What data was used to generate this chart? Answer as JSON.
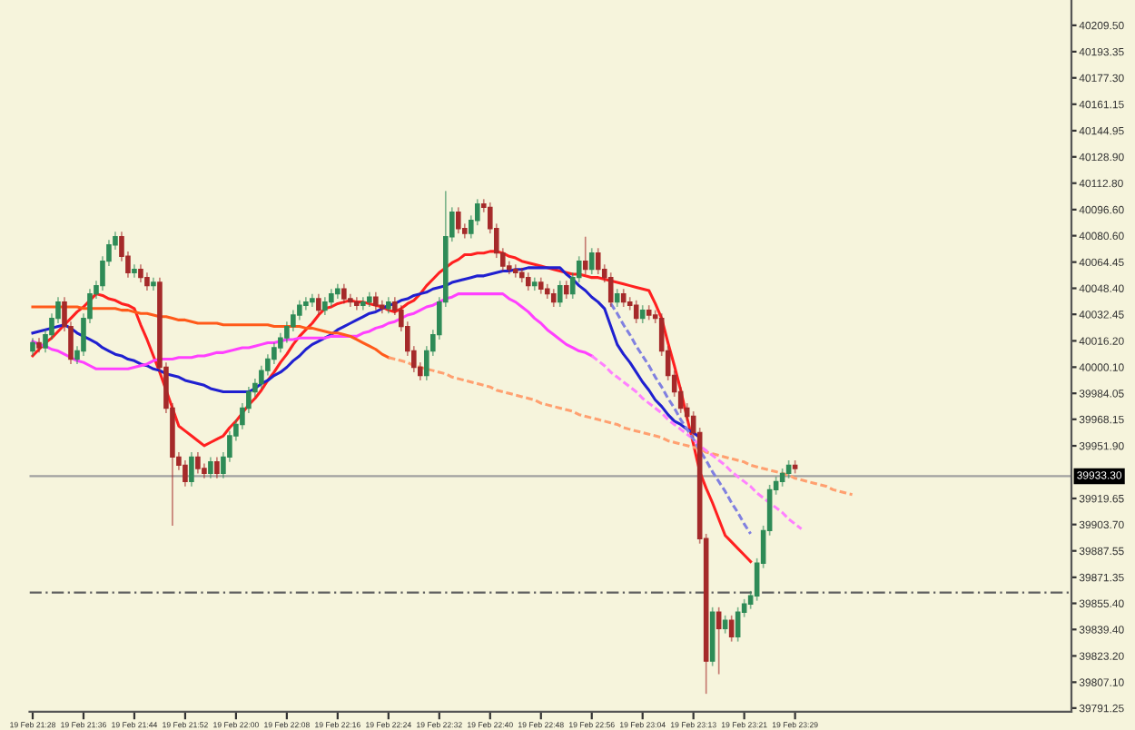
{
  "chart_data": {
    "type": "candlestick",
    "categories": [
      "19 Feb 21:28",
      null,
      null,
      null,
      null,
      null,
      null,
      null,
      "19 Feb 21:36",
      null,
      null,
      null,
      null,
      null,
      null,
      null,
      "19 Feb 21:44",
      null,
      null,
      null,
      null,
      null,
      null,
      null,
      "19 Feb 21:52",
      null,
      null,
      null,
      null,
      null,
      null,
      null,
      "19 Feb 22:00",
      null,
      null,
      null,
      null,
      null,
      null,
      null,
      "19 Feb 22:08",
      null,
      null,
      null,
      null,
      null,
      null,
      null,
      "19 Feb 22:16",
      null,
      null,
      null,
      null,
      null,
      null,
      null,
      "19 Feb 22:24",
      null,
      null,
      null,
      null,
      null,
      null,
      null,
      "19 Feb 22:32",
      null,
      null,
      null,
      null,
      null,
      null,
      null,
      "19 Feb 22:40",
      null,
      null,
      null,
      null,
      null,
      null,
      null,
      "19 Feb 22:48",
      null,
      null,
      null,
      null,
      null,
      null,
      null,
      "19 Feb 22:56",
      null,
      null,
      null,
      null,
      null,
      null,
      null,
      "19 Feb 23:04",
      null,
      null,
      null,
      null,
      null,
      null,
      null,
      "19 Feb 23:13",
      null,
      null,
      null,
      null,
      null,
      null,
      null,
      "19 Feb 23:21",
      null,
      null,
      null,
      null,
      null,
      null,
      null,
      "19 Feb 23:29",
      null,
      null,
      null,
      null,
      null,
      null,
      null,
      null,
      null,
      null,
      null,
      null,
      null,
      null,
      null,
      null,
      null,
      null,
      null,
      null,
      null,
      null,
      null,
      null,
      null,
      null,
      null,
      null,
      null,
      null,
      null,
      null,
      null,
      null,
      null,
      null,
      null,
      null,
      null,
      null,
      null,
      null,
      null
    ],
    "ohlc": [
      [
        40010,
        40018,
        40007,
        40015
      ],
      [
        40015,
        40018,
        40009,
        40012
      ],
      [
        40012,
        40023,
        40009,
        40020
      ],
      [
        40020,
        40033,
        40017,
        40030
      ],
      [
        40030,
        40043,
        40027,
        40040
      ],
      [
        40040,
        40043,
        40022,
        40025
      ],
      [
        40025,
        40028,
        40002,
        40005
      ],
      [
        40005,
        40013,
        40002,
        40010
      ],
      [
        40010,
        40033,
        40007,
        40030
      ],
      [
        40030,
        40048,
        40027,
        40045
      ],
      [
        40045,
        40053,
        40042,
        40050
      ],
      [
        40050,
        40068,
        40047,
        40065
      ],
      [
        40065,
        40078,
        40062,
        40075
      ],
      [
        40075,
        40083,
        40072,
        40080
      ],
      [
        40080,
        40083,
        40065,
        40068
      ],
      [
        40068,
        40071,
        40055,
        40058
      ],
      [
        40058,
        40063,
        40055,
        40060
      ],
      [
        40060,
        40063,
        40052,
        40055
      ],
      [
        40055,
        40058,
        40047,
        40050
      ],
      [
        40050,
        40055,
        40047,
        40052
      ],
      [
        40052,
        40055,
        39997,
        40000
      ],
      [
        40000,
        40003,
        39972,
        39975
      ],
      [
        39975,
        39978,
        39903,
        39945
      ],
      [
        39945,
        39948,
        39937,
        39940
      ],
      [
        39940,
        39943,
        39927,
        39930
      ],
      [
        39930,
        39948,
        39927,
        39945
      ],
      [
        39945,
        39948,
        39935,
        39938
      ],
      [
        39938,
        39941,
        39932,
        39935
      ],
      [
        39935,
        39945,
        39932,
        39942
      ],
      [
        39942,
        39945,
        39932,
        39935
      ],
      [
        39935,
        39948,
        39932,
        39945
      ],
      [
        39945,
        39961,
        39942,
        39958
      ],
      [
        39958,
        39968,
        39955,
        39965
      ],
      [
        39965,
        39978,
        39962,
        39975
      ],
      [
        39975,
        39988,
        39972,
        39985
      ],
      [
        39985,
        39993,
        39982,
        39990
      ],
      [
        39990,
        40001,
        39987,
        39998
      ],
      [
        39998,
        40008,
        39995,
        40005
      ],
      [
        40005,
        40015,
        40002,
        40012
      ],
      [
        40012,
        40021,
        40009,
        40018
      ],
      [
        40018,
        40028,
        40015,
        40025
      ],
      [
        40025,
        40035,
        40022,
        40032
      ],
      [
        40032,
        40041,
        40029,
        40038
      ],
      [
        40038,
        40043,
        40035,
        40040
      ],
      [
        40040,
        40045,
        40037,
        40042
      ],
      [
        40042,
        40045,
        40032,
        40035
      ],
      [
        40035,
        40043,
        40032,
        40040
      ],
      [
        40040,
        40048,
        40037,
        40045
      ],
      [
        40045,
        40051,
        40042,
        40048
      ],
      [
        40048,
        40051,
        40039,
        40042
      ],
      [
        40042,
        40045,
        40037,
        40040
      ],
      [
        40040,
        40043,
        40035,
        40038
      ],
      [
        40038,
        40043,
        40035,
        40040
      ],
      [
        40040,
        40046,
        40037,
        40043
      ],
      [
        40043,
        40046,
        40035,
        40038
      ],
      [
        40038,
        40041,
        40033,
        40036
      ],
      [
        40036,
        40043,
        40033,
        40040
      ],
      [
        40040,
        40043,
        40032,
        40035
      ],
      [
        40035,
        40038,
        40022,
        40025
      ],
      [
        40025,
        40028,
        40007,
        40010
      ],
      [
        40010,
        40013,
        39997,
        40000
      ],
      [
        40000,
        40003,
        39992,
        39995
      ],
      [
        39995,
        40013,
        39992,
        40010
      ],
      [
        40010,
        40023,
        40007,
        40020
      ],
      [
        40020,
        40043,
        40017,
        40040
      ],
      [
        40040,
        40108,
        40037,
        40080
      ],
      [
        40080,
        40098,
        40077,
        40095
      ],
      [
        40095,
        40098,
        40082,
        40085
      ],
      [
        40085,
        40088,
        40079,
        40082
      ],
      [
        40082,
        40093,
        40079,
        40090
      ],
      [
        40090,
        40103,
        40087,
        40100
      ],
      [
        40100,
        40103,
        40095,
        40098
      ],
      [
        40098,
        40101,
        40082,
        40085
      ],
      [
        40085,
        40088,
        40067,
        40070
      ],
      [
        40070,
        40073,
        40059,
        40062
      ],
      [
        40062,
        40065,
        40057,
        40060
      ],
      [
        40060,
        40063,
        40055,
        40058
      ],
      [
        40058,
        40061,
        40052,
        40055
      ],
      [
        40055,
        40058,
        40047,
        40050
      ],
      [
        40050,
        40055,
        40047,
        40052
      ],
      [
        40052,
        40055,
        40045,
        40048
      ],
      [
        40048,
        40051,
        40042,
        40045
      ],
      [
        40045,
        40048,
        40037,
        40040
      ],
      [
        40040,
        40053,
        40037,
        40050
      ],
      [
        40050,
        40053,
        40042,
        40045
      ],
      [
        40045,
        40058,
        40042,
        40055
      ],
      [
        40055,
        40068,
        40052,
        40065
      ],
      [
        40065,
        40080,
        40057,
        40060
      ],
      [
        40060,
        40073,
        40057,
        40070
      ],
      [
        40070,
        40073,
        40057,
        40060
      ],
      [
        40060,
        40063,
        40052,
        40055
      ],
      [
        40055,
        40058,
        40037,
        40040
      ],
      [
        40040,
        40048,
        40037,
        40045
      ],
      [
        40045,
        40048,
        40037,
        40040
      ],
      [
        40040,
        40043,
        40035,
        40038
      ],
      [
        40038,
        40041,
        40027,
        40030
      ],
      [
        40030,
        40038,
        40027,
        40035
      ],
      [
        40035,
        40038,
        40029,
        40032
      ],
      [
        40032,
        40035,
        40027,
        40030
      ],
      [
        40030,
        40033,
        40007,
        40010
      ],
      [
        40010,
        40013,
        39992,
        39995
      ],
      [
        39995,
        39998,
        39982,
        39985
      ],
      [
        39985,
        39988,
        39972,
        39975
      ],
      [
        39975,
        39978,
        39967,
        39970
      ],
      [
        39970,
        39973,
        39957,
        39960
      ],
      [
        39960,
        39963,
        39892,
        39895
      ],
      [
        39895,
        39898,
        39800,
        39820
      ],
      [
        39820,
        39853,
        39817,
        39850
      ],
      [
        39850,
        39853,
        39812,
        39840
      ],
      [
        39840,
        39848,
        39837,
        39845
      ],
      [
        39845,
        39848,
        39832,
        39835
      ],
      [
        39835,
        39853,
        39832,
        39850
      ],
      [
        39850,
        39858,
        39847,
        39855
      ],
      [
        39855,
        39863,
        39852,
        39860
      ],
      [
        39860,
        39883,
        39857,
        39880
      ],
      [
        39880,
        39903,
        39877,
        39900
      ],
      [
        39900,
        39928,
        39897,
        39925
      ],
      [
        39925,
        39933,
        39922,
        39930
      ],
      [
        39930,
        39938,
        39927,
        39935
      ],
      [
        39935,
        39943,
        39932,
        39940
      ],
      [
        39940,
        39943,
        39935,
        39938
      ],
      null,
      null,
      null,
      null,
      null,
      null,
      null,
      null,
      null,
      null,
      null,
      null,
      null,
      null,
      null,
      null,
      null,
      null,
      null,
      null,
      null,
      null,
      null,
      null,
      null,
      null,
      null,
      null,
      null,
      null,
      null,
      null,
      null,
      null,
      null,
      null,
      null,
      null,
      null,
      null,
      null,
      null,
      null
    ],
    "series": [
      {
        "type": "line",
        "color": "#ff2020",
        "line_style": "solid",
        "values": [
          40007,
          40011,
          40015,
          40018,
          40022,
          40026,
          40030,
          40034,
          40037,
          40041,
          40045,
          40044,
          40042,
          40041,
          40039,
          40038,
          40036,
          40026,
          40017,
          40007,
          39997,
          39986,
          39975,
          39964,
          39961,
          39958,
          39955,
          39952,
          39954,
          39956,
          39958,
          39963,
          39967,
          39972,
          39977,
          39981,
          39986,
          39992,
          39997,
          40003,
          40008,
          40014,
          40019,
          40023,
          40027,
          40032,
          40036,
          40037,
          40039,
          40040,
          40041,
          40040,
          40040,
          40039,
          40038,
          40037,
          40035,
          40034,
          40036,
          40039,
          40041,
          40045,
          40050,
          40054,
          40058,
          40061,
          40064,
          40066,
          40069,
          40069,
          40070,
          40070,
          40071,
          40071,
          40070,
          40068,
          40067,
          40065,
          40064,
          40063,
          40062,
          40061,
          40060,
          40059,
          40058,
          40057,
          40057,
          40056,
          40055,
          40055,
          40054,
          40053,
          40052,
          40051,
          40050,
          40049,
          40048,
          40047,
          40039,
          40030,
          40015,
          40001,
          39986,
          39969,
          39953,
          39936,
          39926,
          39917,
          39907,
          39897,
          39893,
          39889,
          39885,
          39881,
          null,
          null,
          null,
          null,
          null,
          null,
          null,
          null,
          null,
          null,
          null,
          null,
          null,
          null,
          null,
          null,
          null,
          null,
          null,
          null,
          null,
          null,
          null,
          null,
          null,
          null,
          null,
          null,
          null,
          null,
          null,
          null,
          null,
          null,
          null,
          null,
          null,
          null,
          null,
          null,
          null,
          null,
          null,
          null,
          null,
          null,
          null,
          null,
          null,
          null
        ]
      },
      {
        "type": "line",
        "color": "#2020d0",
        "line_style": "solid",
        "values": [
          40021,
          40022,
          40023,
          40024,
          40025,
          40026,
          40024,
          40021,
          40019,
          40017,
          40015,
          40012,
          40010,
          40008,
          40007,
          40005,
          40004,
          40002,
          40001,
          39999,
          39998,
          39996,
          39995,
          39994,
          39992,
          39991,
          39990,
          39989,
          39987,
          39986,
          39985,
          39985,
          39985,
          39985,
          39985,
          39987,
          39990,
          39992,
          39995,
          39997,
          40000,
          40004,
          40007,
          40011,
          40014,
          40016,
          40018,
          40020,
          40023,
          40025,
          40027,
          40029,
          40031,
          40033,
          40034,
          40036,
          40038,
          40039,
          40041,
          40042,
          40044,
          40045,
          40046,
          40048,
          40049,
          40050,
          40052,
          40053,
          40054,
          40055,
          40056,
          40056,
          40057,
          40058,
          40059,
          40059,
          40060,
          40060,
          40061,
          40061,
          40061,
          40061,
          40061,
          40061,
          40057,
          40054,
          40050,
          40047,
          40043,
          40040,
          40036,
          40025,
          40014,
          40008,
          40003,
          39997,
          39991,
          39986,
          39980,
          39976,
          39971,
          39967,
          39965,
          39962,
          39960,
          39957,
          null,
          null,
          null,
          null,
          null,
          null,
          null,
          null,
          null,
          null,
          null,
          null,
          null,
          null,
          null,
          null,
          null,
          null,
          null,
          null,
          null,
          null,
          null,
          null,
          null,
          null,
          null,
          null,
          null,
          null,
          null,
          null,
          null,
          null,
          null,
          null,
          null,
          null,
          null,
          null,
          null,
          null,
          null,
          null,
          null,
          null,
          null,
          null,
          null,
          null,
          null,
          null,
          null,
          null,
          null,
          null,
          null,
          null
        ]
      },
      {
        "type": "line",
        "color": "#ff40ff",
        "line_style": "solid",
        "values": [
          40016,
          40014,
          40013,
          40011,
          40010,
          40008,
          40006,
          40004,
          40003,
          40001,
          39999,
          39999,
          39999,
          39999,
          39999,
          39999,
          40000,
          40001,
          40002,
          40004,
          40005,
          40005,
          40005,
          40006,
          40006,
          40006,
          40007,
          40007,
          40008,
          40009,
          40009,
          40010,
          40011,
          40012,
          40012,
          40013,
          40014,
          40015,
          40015,
          40016,
          40017,
          40017,
          40018,
          40018,
          40018,
          40018,
          40018,
          40019,
          40019,
          40019,
          40019,
          40019,
          40021,
          40022,
          40024,
          40025,
          40027,
          40028,
          40030,
          40032,
          40033,
          40035,
          40037,
          40038,
          40040,
          40042,
          40043,
          40045,
          40045,
          40045,
          40045,
          40045,
          40045,
          40045,
          40045,
          40042,
          40040,
          40037,
          40034,
          40030,
          40027,
          40023,
          40020,
          40017,
          40014,
          40012,
          40010,
          40009,
          40007,
          null,
          null,
          null,
          null,
          null,
          null,
          null,
          null,
          null,
          null,
          null,
          null,
          null,
          null,
          null,
          null,
          null,
          null,
          null,
          null,
          null,
          null,
          null,
          null,
          null,
          null,
          null,
          null,
          null,
          null,
          null,
          null,
          null,
          null,
          null,
          null,
          null,
          null,
          null,
          null,
          null,
          null,
          null,
          null,
          null,
          null,
          null,
          null,
          null,
          null,
          null,
          null,
          null,
          null,
          null,
          null,
          null,
          null,
          null,
          null,
          null,
          null,
          null,
          null,
          null,
          null,
          null,
          null,
          null,
          null,
          null,
          null,
          null,
          null,
          null
        ]
      },
      {
        "type": "line",
        "color": "#ff5a1a",
        "line_style": "solid",
        "values": [
          40037,
          40037,
          40037,
          40037,
          40037,
          40037,
          40037,
          40037,
          40036,
          40036,
          40036,
          40036,
          40036,
          40036,
          40035,
          40035,
          40034,
          40033,
          40033,
          40032,
          40031,
          40031,
          40030,
          40029,
          40029,
          40028,
          40027,
          40027,
          40027,
          40027,
          40026,
          40026,
          40026,
          40026,
          40026,
          40026,
          40026,
          40026,
          40025,
          40025,
          40025,
          40025,
          40025,
          40024,
          40024,
          40023,
          40022,
          40021,
          40021,
          40020,
          40019,
          40017,
          40015,
          40013,
          40011,
          40008,
          40006,
          null,
          null,
          null,
          null,
          null,
          null,
          null,
          null,
          null,
          null,
          null,
          null,
          null,
          null,
          null,
          null,
          null,
          null,
          null,
          null,
          null,
          null,
          null,
          null,
          null,
          null,
          null,
          null,
          null,
          null,
          null,
          null,
          null,
          null,
          null,
          null,
          null,
          null,
          null,
          null,
          null,
          null,
          null,
          null,
          null,
          null,
          null,
          null,
          null,
          null,
          null,
          null,
          null,
          null,
          null,
          null,
          null,
          null,
          null,
          null,
          null,
          null,
          null,
          null,
          null,
          null,
          null,
          null,
          null,
          null,
          null,
          null,
          null,
          null,
          null,
          null,
          null,
          null,
          null,
          null,
          null,
          null,
          null,
          null,
          null,
          null,
          null,
          null,
          null,
          null,
          null,
          null,
          null,
          null,
          null,
          null,
          null,
          null,
          null,
          null,
          null,
          null,
          null,
          null,
          null,
          null,
          null
        ]
      },
      {
        "type": "line",
        "color": "#ffa070",
        "line_style": "dashed",
        "values": [
          null,
          null,
          null,
          null,
          null,
          null,
          null,
          null,
          null,
          null,
          null,
          null,
          null,
          null,
          null,
          null,
          null,
          null,
          null,
          null,
          null,
          null,
          null,
          null,
          null,
          null,
          null,
          null,
          null,
          null,
          null,
          null,
          null,
          null,
          null,
          null,
          null,
          null,
          null,
          null,
          null,
          null,
          null,
          null,
          null,
          null,
          null,
          null,
          null,
          null,
          null,
          null,
          null,
          null,
          null,
          null,
          40006,
          40005,
          40004,
          40003,
          40001,
          40000,
          39999,
          39998,
          39997,
          39996,
          39994,
          39993,
          39992,
          39991,
          39990,
          39989,
          39988,
          39986,
          39985,
          39984,
          39983,
          39982,
          39981,
          39980,
          39978,
          39977,
          39976,
          39975,
          39974,
          39973,
          39971,
          39970,
          39969,
          39968,
          39967,
          39966,
          39965,
          39963,
          39962,
          39961,
          39960,
          39959,
          39958,
          39957,
          39955,
          39954,
          39953,
          39952,
          39951,
          39950,
          39948,
          39947,
          39946,
          39945,
          39944,
          39943,
          39942,
          39940,
          39939,
          39938,
          39937,
          39936,
          39935,
          39934,
          39932,
          39931,
          39930,
          39929,
          39928,
          39927,
          39925,
          39924,
          39923,
          39922,
          null,
          null,
          null,
          null,
          null,
          null,
          null,
          null,
          null,
          null,
          null,
          null,
          null,
          null,
          null,
          null,
          null,
          null,
          null,
          null,
          null,
          null,
          null,
          null,
          null,
          null,
          null,
          null,
          null,
          null,
          null,
          null,
          null,
          null
        ]
      },
      {
        "type": "line",
        "color": "#ff80ff",
        "line_style": "dashed",
        "values": [
          null,
          null,
          null,
          null,
          null,
          null,
          null,
          null,
          null,
          null,
          null,
          null,
          null,
          null,
          null,
          null,
          null,
          null,
          null,
          null,
          null,
          null,
          null,
          null,
          null,
          null,
          null,
          null,
          null,
          null,
          null,
          null,
          null,
          null,
          null,
          null,
          null,
          null,
          null,
          null,
          null,
          null,
          null,
          null,
          null,
          null,
          null,
          null,
          null,
          null,
          null,
          null,
          null,
          null,
          null,
          null,
          null,
          null,
          null,
          null,
          null,
          null,
          null,
          null,
          null,
          null,
          null,
          null,
          null,
          null,
          null,
          null,
          null,
          null,
          null,
          null,
          null,
          null,
          null,
          null,
          null,
          null,
          null,
          null,
          null,
          null,
          null,
          null,
          40007,
          40004,
          40001,
          39997,
          39994,
          39991,
          39988,
          39985,
          39981,
          39978,
          39975,
          39972,
          39968,
          39965,
          39962,
          39959,
          39956,
          39952,
          39949,
          39946,
          39943,
          39940,
          39936,
          39933,
          39930,
          39927,
          39923,
          39920,
          39917,
          39914,
          39911,
          39907,
          39904,
          39901,
          null,
          null,
          null,
          null,
          null,
          null,
          null,
          null,
          null,
          null,
          null,
          null,
          null,
          null,
          null,
          null,
          null,
          null,
          null,
          null,
          null,
          null,
          null,
          null,
          null,
          null,
          null,
          null,
          null,
          null,
          null,
          null,
          null,
          null,
          null,
          null,
          null,
          null,
          null,
          null,
          null,
          null
        ]
      },
      {
        "type": "line",
        "color": "#8080e0",
        "line_style": "dashed",
        "values": [
          null,
          null,
          null,
          null,
          null,
          null,
          null,
          null,
          null,
          null,
          null,
          null,
          null,
          null,
          null,
          null,
          null,
          null,
          null,
          null,
          null,
          null,
          null,
          null,
          null,
          null,
          null,
          null,
          null,
          null,
          null,
          null,
          null,
          null,
          null,
          null,
          null,
          null,
          null,
          null,
          null,
          null,
          null,
          null,
          null,
          null,
          null,
          null,
          null,
          null,
          null,
          null,
          null,
          null,
          null,
          null,
          null,
          null,
          null,
          null,
          null,
          null,
          null,
          null,
          null,
          null,
          null,
          null,
          null,
          null,
          null,
          null,
          null,
          null,
          null,
          null,
          null,
          null,
          null,
          null,
          null,
          null,
          null,
          null,
          null,
          null,
          null,
          null,
          null,
          null,
          null,
          40039,
          40033,
          40026,
          40020,
          40013,
          40007,
          40001,
          39994,
          39988,
          39981,
          39975,
          39968,
          39962,
          39956,
          39949,
          39943,
          39936,
          39930,
          39924,
          39917,
          39911,
          39904,
          39898,
          null,
          null,
          null,
          null,
          null,
          null,
          null,
          null,
          null,
          null,
          null,
          null,
          null,
          null,
          null,
          null,
          null,
          null,
          null,
          null,
          null,
          null,
          null,
          null,
          null,
          null,
          null,
          null,
          null,
          null,
          null,
          null,
          null,
          null,
          null,
          null,
          null,
          null,
          null,
          null,
          null,
          null,
          null,
          null,
          null,
          null,
          null,
          null,
          null,
          null
        ]
      }
    ],
    "ref_lines": [
      {
        "axis": "y",
        "value": 39933.3,
        "label": "39933.30",
        "color": "#a0a0a0",
        "line_style": "solid"
      },
      {
        "axis": "y",
        "value": 39862,
        "color": "#606060",
        "line_style": "dashdot"
      }
    ],
    "ylim": [
      39789,
      40225
    ],
    "yticks": [
      {
        "value": 40209.5,
        "label": "40209.50"
      },
      {
        "value": 40193.35,
        "label": "40193.35"
      },
      {
        "value": 40177.3,
        "label": "40177.30"
      },
      {
        "value": 40161.15,
        "label": "40161.15"
      },
      {
        "value": 40144.95,
        "label": "40144.95"
      },
      {
        "value": 40128.9,
        "label": "40128.90"
      },
      {
        "value": 40112.8,
        "label": "40112.80"
      },
      {
        "value": 40096.6,
        "label": "40096.60"
      },
      {
        "value": 40080.6,
        "label": "40080.60"
      },
      {
        "value": 40064.45,
        "label": "40064.45"
      },
      {
        "value": 40048.4,
        "label": "40048.40"
      },
      {
        "value": 40032.45,
        "label": "40032.45"
      },
      {
        "value": 40016.2,
        "label": "40016.20"
      },
      {
        "value": 40000.1,
        "label": "40000.10"
      },
      {
        "value": 39984.05,
        "label": "39984.05"
      },
      {
        "value": 39968.15,
        "label": "39968.15"
      },
      {
        "value": 39951.9,
        "label": "39951.90"
      },
      {
        "value": 39919.65,
        "label": "39919.65"
      },
      {
        "value": 39903.7,
        "label": "39903.70"
      },
      {
        "value": 39887.55,
        "label": "39887.55"
      },
      {
        "value": 39871.35,
        "label": "39871.35"
      },
      {
        "value": 39855.4,
        "label": "39855.40"
      },
      {
        "value": 39839.4,
        "label": "39839.40"
      },
      {
        "value": 39823.2,
        "label": "39823.20"
      },
      {
        "value": 39807.1,
        "label": "39807.10"
      },
      {
        "value": 39791.25,
        "label": "39791.25"
      }
    ],
    "grid": false,
    "legend": false
  }
}
